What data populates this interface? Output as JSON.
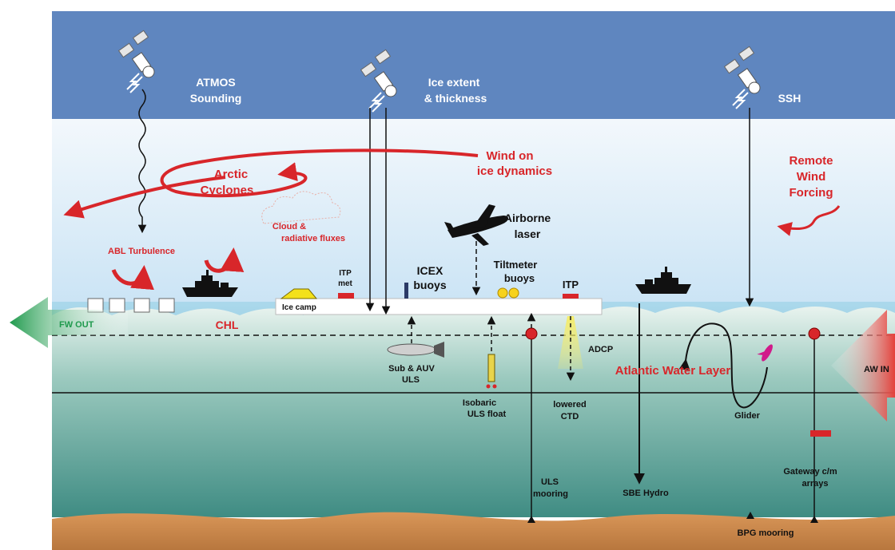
{
  "colors": {
    "sky": "#5f86bf",
    "red_label": "#d8262a",
    "ocean_top": "#e6f2ee",
    "ocean_deep": "#3f8c83",
    "seafloor": "#c8884e",
    "arrow_green": "#1f9a4d"
  },
  "labels": {
    "atmos": [
      "ATMOS",
      "Sounding"
    ],
    "ice_extent": [
      "Ice extent",
      "& thickness"
    ],
    "ssh": "SSH",
    "wind_on_ice": [
      "Wind on",
      "ice dynamics"
    ],
    "arctic_cyclones": [
      "Arctic",
      "Cyclones"
    ],
    "remote_wind": [
      "Remote",
      "Wind",
      "Forcing"
    ],
    "cloud": [
      "Cloud &",
      "radiative fluxes"
    ],
    "airborne": [
      "Airborne",
      "laser"
    ],
    "abl": "ABL Turbulence",
    "itp_met": [
      "ITP",
      "met"
    ],
    "icex": [
      "ICEX",
      "buoys"
    ],
    "tiltmeter": [
      "Tiltmeter",
      "buoys"
    ],
    "itp": "ITP",
    "ice_camp": "Ice camp",
    "fw_out": "FW OUT",
    "chl": "CHL",
    "adcp": "ADCP",
    "atlantic_water": "Atlantic Water Layer",
    "aw_in": "AW IN",
    "sub_auv": [
      "Sub & AUV",
      "ULS"
    ],
    "isobaric": [
      "Isobaric",
      "ULS float"
    ],
    "lowered_ctd": [
      "lowered",
      "CTD"
    ],
    "glider": "Glider",
    "uls_mooring": [
      "ULS",
      "mooring"
    ],
    "sbe_hydro": "SBE Hydro",
    "gateway": [
      "Gateway c/m",
      "arrays"
    ],
    "bpg_mooring": "BPG mooring"
  },
  "icons": [
    "satellite-icon",
    "airplane-icon",
    "ship-icon",
    "tent-icon",
    "submarine-icon",
    "glider-icon"
  ]
}
